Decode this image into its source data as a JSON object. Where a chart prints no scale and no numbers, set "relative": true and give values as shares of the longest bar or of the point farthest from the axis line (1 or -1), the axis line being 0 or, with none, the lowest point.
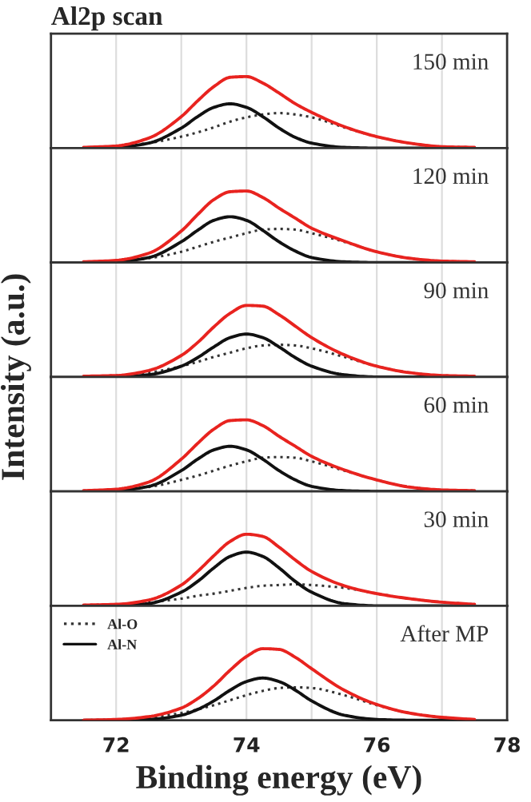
{
  "chart_data": [
    {
      "type": "line",
      "title": "Al2p scan",
      "relative": true,
      "x": [
        71.5,
        72,
        72.5,
        73,
        73.25,
        73.5,
        73.75,
        74,
        74.25,
        74.5,
        74.75,
        75,
        75.5,
        76,
        76.5,
        77,
        77.5
      ],
      "xlim": [
        71,
        78
      ],
      "xticks": [
        72,
        {
          "value": 73,
          "label": null
        },
        74,
        {
          "value": 75,
          "label": null
        },
        76,
        {
          "value": 77,
          "label": null
        },
        78
      ],
      "grid": "x",
      "tick_labels": false,
      "annotations": [
        "150 min"
      ],
      "series": [
        {
          "color": "#333333",
          "line_style": "dotted",
          "values": [
            0.01,
            0.02,
            0.07,
            0.16,
            0.22,
            0.29,
            0.37,
            0.43,
            0.47,
            0.49,
            0.47,
            0.43,
            0.29,
            0.16,
            0.07,
            0.02,
            0.01
          ]
        },
        {
          "color": "#111111",
          "line_style": "solid",
          "values": [
            0,
            0.01,
            0.07,
            0.28,
            0.44,
            0.57,
            0.62,
            0.57,
            0.44,
            0.28,
            0.15,
            0.07,
            0.01,
            0,
            0,
            0,
            0
          ]
        },
        {
          "color": "#e8231f",
          "line_style": "solid",
          "values": [
            0.01,
            0.03,
            0.14,
            0.44,
            0.66,
            0.86,
            0.99,
            1.0,
            0.91,
            0.77,
            0.62,
            0.5,
            0.3,
            0.16,
            0.07,
            0.02,
            0.01
          ]
        }
      ]
    },
    {
      "type": "line",
      "relative": true,
      "x": [
        71.5,
        72,
        72.5,
        73,
        73.25,
        73.5,
        73.75,
        74,
        74.25,
        74.5,
        74.75,
        75,
        75.5,
        76,
        76.5,
        77,
        77.5
      ],
      "xlim": [
        71,
        78
      ],
      "xticks": [
        72,
        {
          "value": 73,
          "label": null
        },
        74,
        {
          "value": 75,
          "label": null
        },
        76,
        {
          "value": 77,
          "label": null
        },
        78
      ],
      "grid": "x",
      "tick_labels": false,
      "annotations": [
        "120 min"
      ],
      "series": [
        {
          "color": "#333333",
          "line_style": "dotted",
          "values": [
            0.01,
            0.02,
            0.06,
            0.15,
            0.22,
            0.29,
            0.35,
            0.41,
            0.46,
            0.47,
            0.46,
            0.41,
            0.29,
            0.15,
            0.06,
            0.02,
            0.01
          ]
        },
        {
          "color": "#111111",
          "line_style": "solid",
          "values": [
            0,
            0.01,
            0.07,
            0.29,
            0.45,
            0.59,
            0.64,
            0.59,
            0.45,
            0.29,
            0.16,
            0.07,
            0.01,
            0,
            0,
            0,
            0
          ]
        },
        {
          "color": "#e8231f",
          "line_style": "solid",
          "values": [
            0.01,
            0.03,
            0.13,
            0.44,
            0.67,
            0.88,
            0.99,
            1.0,
            0.91,
            0.76,
            0.62,
            0.48,
            0.3,
            0.15,
            0.06,
            0.02,
            0.01
          ]
        }
      ]
    },
    {
      "type": "line",
      "relative": true,
      "ylabel": "Intensity (a.u.)",
      "x": [
        71.5,
        72,
        72.5,
        73,
        73.25,
        73.5,
        73.75,
        74,
        74.25,
        74.5,
        74.75,
        75,
        75.5,
        76,
        76.5,
        77,
        77.5
      ],
      "xlim": [
        71,
        78
      ],
      "xticks": [
        72,
        {
          "value": 73,
          "label": null
        },
        74,
        {
          "value": 75,
          "label": null
        },
        76,
        {
          "value": 77,
          "label": null
        },
        78
      ],
      "grid": "x",
      "tick_labels": false,
      "annotations": [
        "90 min"
      ],
      "series": [
        {
          "color": "#333333",
          "line_style": "dotted",
          "values": [
            0.01,
            0.02,
            0.06,
            0.15,
            0.21,
            0.28,
            0.34,
            0.4,
            0.44,
            0.45,
            0.44,
            0.4,
            0.28,
            0.15,
            0.06,
            0.02,
            0.01
          ]
        },
        {
          "color": "#111111",
          "line_style": "solid",
          "values": [
            0,
            0,
            0.03,
            0.15,
            0.27,
            0.42,
            0.55,
            0.6,
            0.55,
            0.42,
            0.27,
            0.15,
            0.03,
            0,
            0,
            0,
            0
          ]
        },
        {
          "color": "#e8231f",
          "line_style": "solid",
          "values": [
            0.01,
            0.02,
            0.09,
            0.3,
            0.48,
            0.7,
            0.89,
            1.0,
            0.99,
            0.87,
            0.71,
            0.55,
            0.31,
            0.15,
            0.06,
            0.02,
            0.01
          ]
        }
      ]
    },
    {
      "type": "line",
      "relative": true,
      "x": [
        71.5,
        72,
        72.5,
        73,
        73.25,
        73.5,
        73.75,
        74,
        74.25,
        74.5,
        74.75,
        75,
        75.5,
        76,
        76.5,
        77,
        77.5
      ],
      "xlim": [
        71,
        78
      ],
      "xticks": [
        72,
        {
          "value": 73,
          "label": null
        },
        74,
        {
          "value": 75,
          "label": null
        },
        76,
        {
          "value": 77,
          "label": null
        },
        78
      ],
      "grid": "x",
      "tick_labels": false,
      "annotations": [
        "60 min"
      ],
      "series": [
        {
          "color": "#333333",
          "line_style": "dotted",
          "values": [
            0.01,
            0.02,
            0.06,
            0.16,
            0.22,
            0.29,
            0.36,
            0.42,
            0.47,
            0.48,
            0.47,
            0.42,
            0.29,
            0.16,
            0.06,
            0.02,
            0.01
          ]
        },
        {
          "color": "#111111",
          "line_style": "solid",
          "values": [
            0,
            0.01,
            0.07,
            0.29,
            0.45,
            0.58,
            0.63,
            0.58,
            0.45,
            0.29,
            0.16,
            0.07,
            0.01,
            0,
            0,
            0,
            0
          ]
        },
        {
          "color": "#e8231f",
          "line_style": "solid",
          "values": [
            0.01,
            0.03,
            0.13,
            0.45,
            0.67,
            0.87,
            0.99,
            1.0,
            0.92,
            0.77,
            0.63,
            0.49,
            0.3,
            0.16,
            0.06,
            0.02,
            0.01
          ]
        }
      ]
    },
    {
      "type": "line",
      "relative": true,
      "x": [
        71.5,
        72,
        72.5,
        73,
        73.25,
        73.5,
        73.75,
        74,
        74.25,
        74.5,
        74.75,
        75,
        75.5,
        76,
        76.5,
        77,
        77.5
      ],
      "xlim": [
        71,
        78
      ],
      "xticks": [
        72,
        {
          "value": 73,
          "label": null
        },
        74,
        {
          "value": 75,
          "label": null
        },
        76,
        {
          "value": 77,
          "label": null
        },
        78
      ],
      "grid": "x",
      "tick_labels": false,
      "annotations": [
        "30 min"
      ],
      "series": [
        {
          "color": "#333333",
          "line_style": "dotted",
          "values": [
            0.01,
            0.02,
            0.05,
            0.1,
            0.14,
            0.17,
            0.21,
            0.25,
            0.28,
            0.29,
            0.3,
            0.29,
            0.25,
            0.17,
            0.1,
            0.05,
            0.02
          ]
        },
        {
          "color": "#111111",
          "line_style": "solid",
          "values": [
            0,
            0,
            0.03,
            0.19,
            0.34,
            0.53,
            0.69,
            0.75,
            0.69,
            0.53,
            0.34,
            0.19,
            0.03,
            0,
            0,
            0,
            0
          ]
        },
        {
          "color": "#e8231f",
          "line_style": "solid",
          "values": [
            0.01,
            0.02,
            0.08,
            0.29,
            0.48,
            0.7,
            0.9,
            1.0,
            0.97,
            0.82,
            0.64,
            0.48,
            0.28,
            0.17,
            0.1,
            0.05,
            0.02
          ]
        }
      ]
    },
    {
      "type": "line",
      "relative": true,
      "xlabel": "Binding energy (eV)",
      "legend": "top left",
      "x": [
        71.5,
        72,
        72.5,
        73,
        73.25,
        73.5,
        73.75,
        74,
        74.25,
        74.5,
        74.75,
        75,
        75.5,
        76,
        76.5,
        77,
        77.5
      ],
      "xlim": [
        71,
        78
      ],
      "xticks": [
        72,
        {
          "value": 73,
          "label": null
        },
        74,
        {
          "value": 75,
          "label": null
        },
        76,
        {
          "value": 77,
          "label": null
        },
        78
      ],
      "grid": "x",
      "tick_labels": "x",
      "annotations": [
        "After MP"
      ],
      "series": [
        {
          "name": "Al-O",
          "color": "#333333",
          "line_style": "dotted",
          "values": [
            0,
            0.01,
            0.04,
            0.1,
            0.15,
            0.21,
            0.28,
            0.35,
            0.41,
            0.45,
            0.46,
            0.45,
            0.35,
            0.21,
            0.1,
            0.04,
            0.01
          ]
        },
        {
          "name": "Al-N",
          "color": "#111111",
          "line_style": "solid",
          "values": [
            0,
            0,
            0.01,
            0.07,
            0.15,
            0.27,
            0.42,
            0.54,
            0.59,
            0.54,
            0.42,
            0.27,
            0.07,
            0.01,
            0,
            0,
            0
          ]
        },
        {
          "color": "#e8231f",
          "line_style": "solid",
          "values": [
            0,
            0.01,
            0.05,
            0.17,
            0.3,
            0.48,
            0.7,
            0.89,
            1.0,
            0.99,
            0.88,
            0.72,
            0.42,
            0.22,
            0.1,
            0.04,
            0.01
          ]
        }
      ]
    }
  ]
}
